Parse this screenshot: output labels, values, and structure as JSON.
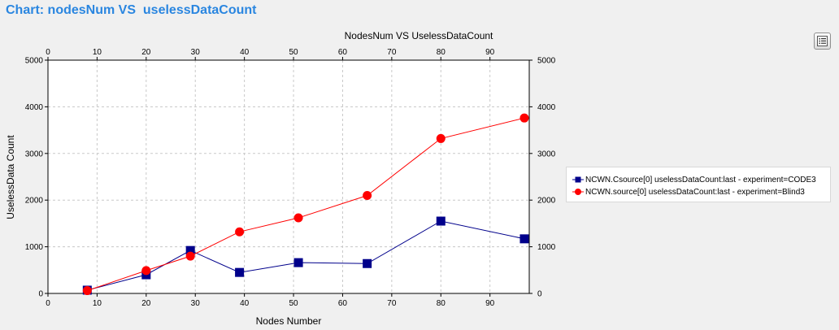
{
  "header": {
    "title": "Chart: nodesNum VS  uselessDataCount"
  },
  "toolbar": {
    "menu_icon": "list-icon"
  },
  "chart_data": {
    "type": "line",
    "title": "NodesNum VS  UselessDataCount",
    "xlabel": "Nodes Number",
    "ylabel": "UselessData Count",
    "xlim": [
      0,
      98
    ],
    "ylim": [
      0,
      5000
    ],
    "xticks": [
      0,
      10,
      20,
      30,
      40,
      50,
      60,
      70,
      80,
      90
    ],
    "yticks": [
      0,
      1000,
      2000,
      3000,
      4000,
      5000
    ],
    "grid": true,
    "legend_position": "right",
    "series": [
      {
        "name": "NCWN.Csource[0] uselessDataCount:last - experiment=CODE3",
        "color": "#00008b",
        "marker": "square",
        "x": [
          8,
          20,
          29,
          39,
          51,
          65,
          80,
          97
        ],
        "y": [
          70,
          400,
          920,
          450,
          660,
          640,
          1550,
          1170
        ]
      },
      {
        "name": "NCWN.source[0] uselessDataCount:last - experiment=Blind3",
        "color": "#ff0000",
        "marker": "circle",
        "x": [
          8,
          20,
          29,
          39,
          51,
          65,
          80,
          97
        ],
        "y": [
          60,
          490,
          800,
          1320,
          1620,
          2100,
          3320,
          3760
        ]
      }
    ]
  }
}
